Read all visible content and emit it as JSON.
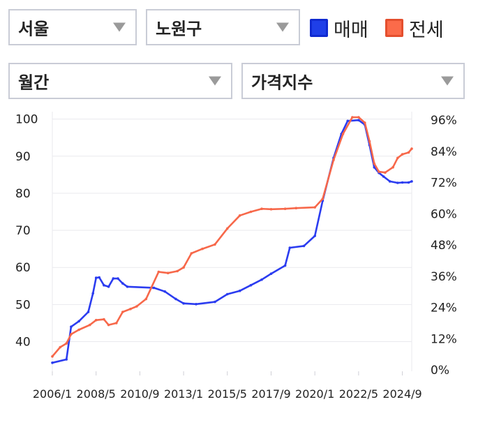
{
  "filters": {
    "region": "서울",
    "district": "노원구",
    "period": "월간",
    "metric": "가격지수"
  },
  "legend": {
    "sale_label": "매매",
    "jeonse_label": "전세"
  },
  "colors": {
    "sale": "#2b3cf0",
    "jeonse": "#f7684a",
    "grid": "#e9e9ee",
    "caret": "#9a9a9a"
  },
  "chart_data": {
    "type": "line",
    "x_ticks": [
      "2006/1",
      "2008/5",
      "2010/9",
      "2013/1",
      "2015/5",
      "2017/9",
      "2020/1",
      "2022/5",
      "2024/9"
    ],
    "y_left": {
      "ticks": [
        "100",
        "90",
        "80",
        "70",
        "60",
        "50",
        "40"
      ],
      "range": [
        32,
        102
      ]
    },
    "y_right": {
      "ticks": [
        "96%",
        "84%",
        "72%",
        "60%",
        "48%",
        "36%",
        "24%",
        "12%",
        "0%"
      ],
      "range": [
        0,
        96
      ]
    },
    "grid": true,
    "series": [
      {
        "name": "매매",
        "color": "#2b3cf0",
        "points": [
          [
            "2006-01",
            34.3
          ],
          [
            "2006-10",
            35.2
          ],
          [
            "2007-01",
            44
          ],
          [
            "2007-06",
            45.5
          ],
          [
            "2007-12",
            48
          ],
          [
            "2008-03",
            53
          ],
          [
            "2008-05",
            57.2
          ],
          [
            "2008-07",
            57.3
          ],
          [
            "2008-10",
            55.2
          ],
          [
            "2009-01",
            54.8
          ],
          [
            "2009-04",
            57
          ],
          [
            "2009-07",
            57
          ],
          [
            "2009-10",
            55.7
          ],
          [
            "2010-01",
            54.8
          ],
          [
            "2011-06",
            54.5
          ],
          [
            "2012-01",
            53.5
          ],
          [
            "2012-08",
            51.5
          ],
          [
            "2013-01",
            50.3
          ],
          [
            "2013-09",
            50.1
          ],
          [
            "2014-09",
            50.7
          ],
          [
            "2015-05",
            52.8
          ],
          [
            "2016-01",
            53.7
          ],
          [
            "2016-08",
            55.2
          ],
          [
            "2017-03",
            56.7
          ],
          [
            "2017-09",
            58.3
          ],
          [
            "2018-06",
            60.5
          ],
          [
            "2018-09",
            65.3
          ],
          [
            "2019-06",
            65.8
          ],
          [
            "2020-01",
            68.5
          ],
          [
            "2020-06",
            78
          ],
          [
            "2021-01",
            89.5
          ],
          [
            "2021-06",
            96
          ],
          [
            "2021-10",
            99.5
          ],
          [
            "2022-05",
            99.7
          ],
          [
            "2022-09",
            98.5
          ],
          [
            "2022-12",
            93
          ],
          [
            "2023-03",
            87
          ],
          [
            "2023-06",
            85.5
          ],
          [
            "2023-09",
            84.5
          ],
          [
            "2024-01",
            83.2
          ],
          [
            "2024-06",
            82.8
          ],
          [
            "2024-09",
            82.9
          ],
          [
            "2025-01",
            82.9
          ],
          [
            "2025-03",
            83.2
          ]
        ]
      },
      {
        "name": "전세",
        "color": "#f7684a",
        "points": [
          [
            "2006-01",
            36
          ],
          [
            "2006-06",
            38.5
          ],
          [
            "2006-10",
            39.5
          ],
          [
            "2007-01",
            42
          ],
          [
            "2007-06",
            43.2
          ],
          [
            "2008-01",
            44.5
          ],
          [
            "2008-05",
            45.8
          ],
          [
            "2008-10",
            46
          ],
          [
            "2009-01",
            44.5
          ],
          [
            "2009-06",
            45
          ],
          [
            "2009-10",
            48
          ],
          [
            "2010-03",
            48.8
          ],
          [
            "2010-07",
            49.5
          ],
          [
            "2011-01",
            51.5
          ],
          [
            "2011-09",
            58.8
          ],
          [
            "2012-03",
            58.5
          ],
          [
            "2012-09",
            59
          ],
          [
            "2013-01",
            60
          ],
          [
            "2013-06",
            63.8
          ],
          [
            "2014-01",
            65
          ],
          [
            "2014-09",
            66.2
          ],
          [
            "2015-05",
            70.5
          ],
          [
            "2016-01",
            74
          ],
          [
            "2016-08",
            75
          ],
          [
            "2017-03",
            75.8
          ],
          [
            "2017-09",
            75.7
          ],
          [
            "2018-06",
            75.8
          ],
          [
            "2019-01",
            76
          ],
          [
            "2020-01",
            76.2
          ],
          [
            "2020-06",
            78.5
          ],
          [
            "2021-01",
            89
          ],
          [
            "2021-07",
            96
          ],
          [
            "2022-01",
            100.5
          ],
          [
            "2022-05",
            100.5
          ],
          [
            "2022-09",
            99
          ],
          [
            "2022-12",
            94
          ],
          [
            "2023-03",
            88
          ],
          [
            "2023-06",
            85.8
          ],
          [
            "2023-10",
            85.6
          ],
          [
            "2024-03",
            87
          ],
          [
            "2024-06",
            89.5
          ],
          [
            "2024-09",
            90.5
          ],
          [
            "2025-01",
            91
          ],
          [
            "2025-03",
            92
          ]
        ]
      }
    ]
  }
}
